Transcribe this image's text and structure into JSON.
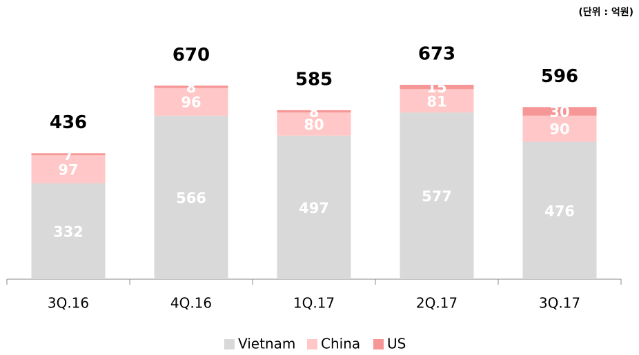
{
  "chart_data": {
    "type": "stacked_bar",
    "note": "(단위 : 억원)",
    "categories": [
      "3Q.16",
      "4Q.16",
      "1Q.17",
      "2Q.17",
      "3Q.17"
    ],
    "series": [
      {
        "name": "Vietnam",
        "color": "#d9d9d9",
        "values": [
          332,
          566,
          497,
          577,
          476
        ]
      },
      {
        "name": "China",
        "color": "#ffc7c7",
        "values": [
          97,
          96,
          80,
          81,
          90
        ]
      },
      {
        "name": "US",
        "color": "#f79696",
        "values": [
          7,
          8,
          8,
          15,
          30
        ]
      }
    ],
    "totals": [
      436,
      670,
      585,
      673,
      596
    ]
  }
}
